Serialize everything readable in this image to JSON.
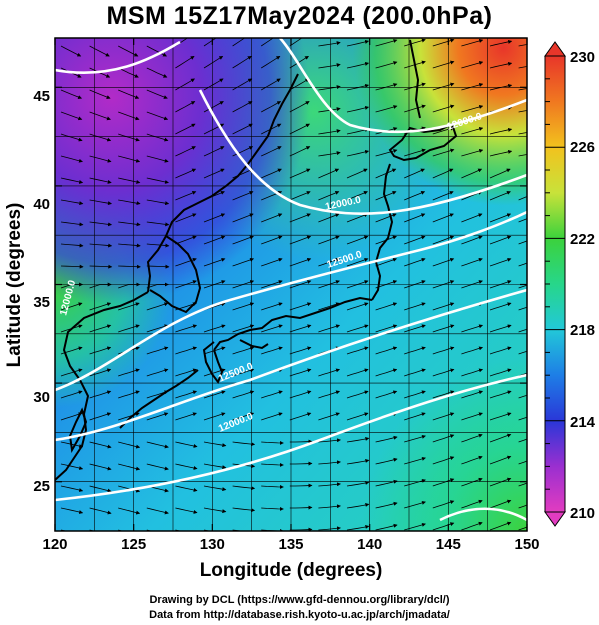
{
  "title": "MSM 15Z17May2024 (200.0hPa)",
  "map": {
    "x_axis_label": "Longitude (degrees)",
    "y_axis_label": "Latitude  (degrees)",
    "x_ticks": [
      "120",
      "125",
      "130",
      "135",
      "140",
      "145",
      "150"
    ],
    "y_ticks": [
      "25",
      "30",
      "35",
      "40",
      "45"
    ],
    "lon_range": [
      120,
      150
    ],
    "lat_range": [
      22.5,
      47.5
    ],
    "contour_labels": [
      "12000.0",
      "12000.0",
      "12500.0",
      "12500.0",
      "12000.0",
      "12000.0"
    ],
    "wind_arrows": "black streamline arrows"
  },
  "colorbar": {
    "ticks": [
      "230",
      "226",
      "222",
      "218",
      "214",
      "210"
    ],
    "range": [
      210,
      230
    ],
    "colors": [
      "#e23cc0",
      "#9a2fd0",
      "#2a37d8",
      "#1e7ee6",
      "#22c8d8",
      "#27d68a",
      "#3cd23c",
      "#c8e23a",
      "#f2c21e",
      "#f07820",
      "#e8362a"
    ]
  },
  "credits": {
    "line1": "Drawing by DCL (https://www.gfd-dennou.org/library/dcl/)",
    "line2": "Data from http://database.rish.kyoto-u.ac.jp/arch/jmadata/"
  }
}
